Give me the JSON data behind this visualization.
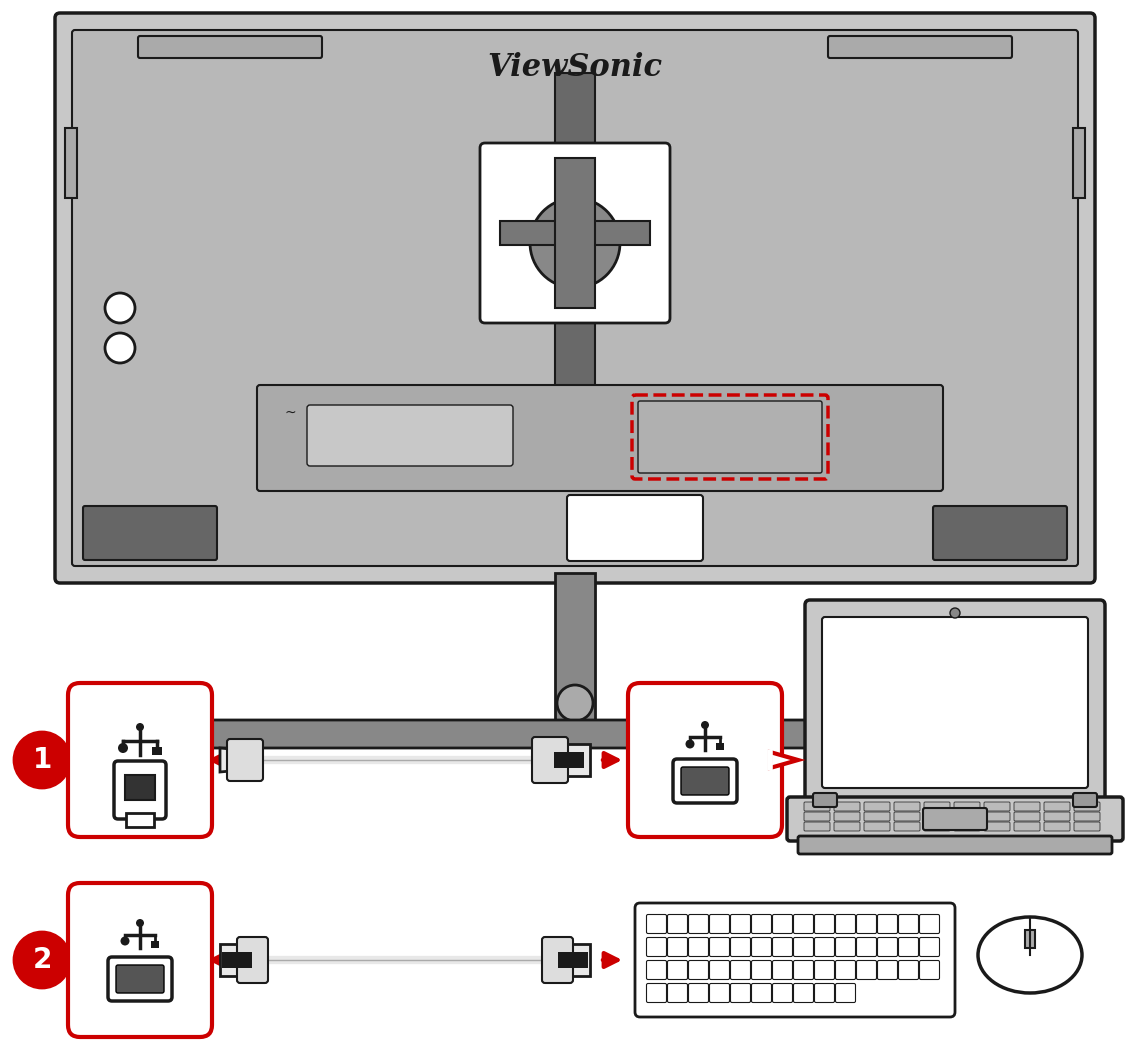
{
  "bg_color": "#ffffff",
  "monitor_color": "#c8c8c8",
  "monitor_dark_color": "#888888",
  "red_color": "#cc0000",
  "black_color": "#1a1a1a",
  "cable_color": "#e8e8e8",
  "fig_width": 11.45,
  "fig_height": 10.58
}
